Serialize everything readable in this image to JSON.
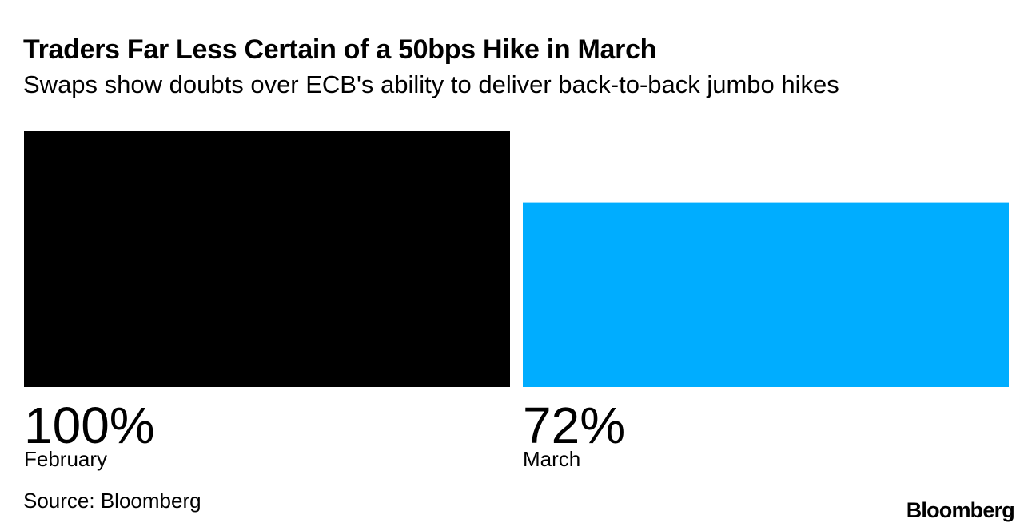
{
  "header": {
    "title": "Traders Far Less Certain of a 50bps Hike in March",
    "subtitle": "Swaps show doubts over ECB's ability to deliver back-to-back jumbo hikes"
  },
  "footer": {
    "source": "Source: Bloomberg",
    "logo": "Bloomberg"
  },
  "chart_data": {
    "type": "bar",
    "categories": [
      "February",
      "March"
    ],
    "values": [
      100,
      72
    ],
    "value_labels": [
      "100%",
      "72%"
    ],
    "colors": [
      "#000000",
      "#00adff"
    ],
    "ylim": [
      0,
      100
    ],
    "unit": "%",
    "grid": false,
    "legend": "none"
  }
}
